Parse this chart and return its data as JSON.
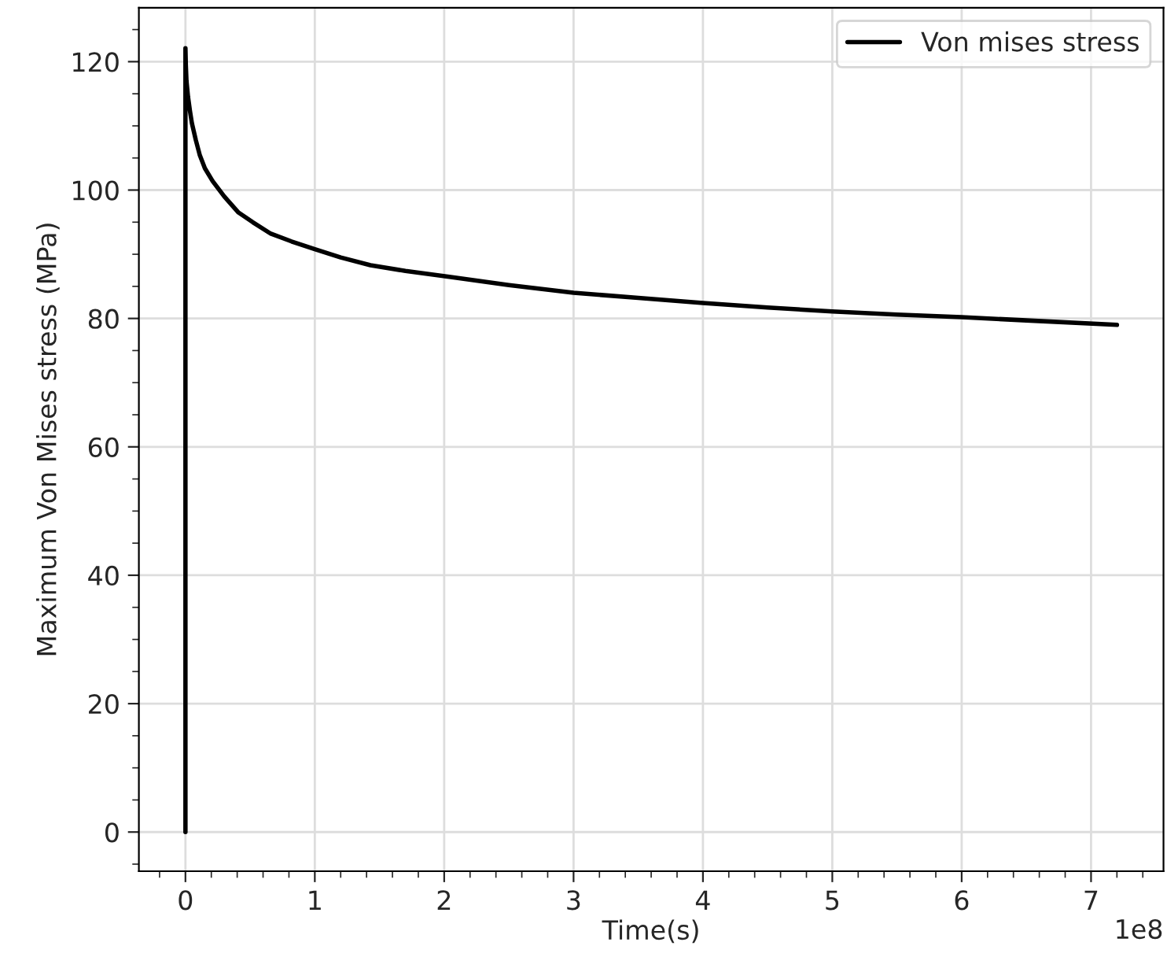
{
  "chart_data": {
    "type": "line",
    "xlabel": "Time(s)",
    "ylabel": "Maximum Von Mises stress (MPa)",
    "series": [
      {
        "name": "Von mises stress",
        "color": "#000000",
        "x": [
          0,
          0,
          0.003,
          0.008,
          0.02,
          0.035,
          0.05,
          0.08,
          0.11,
          0.15,
          0.21,
          0.3,
          0.41,
          0.52,
          0.66,
          0.82,
          1.0,
          1.2,
          1.43,
          1.7,
          2.04,
          2.5,
          3.0,
          3.5,
          4.0,
          4.5,
          5.0,
          5.5,
          6.0,
          6.5,
          7.2
        ],
        "values": [
          0,
          122.1,
          119.5,
          117.0,
          114.5,
          112.3,
          110.4,
          107.8,
          105.5,
          103.4,
          101.4,
          99.0,
          96.5,
          95.0,
          93.2,
          92.0,
          90.8,
          89.5,
          88.3,
          87.4,
          86.5,
          85.2,
          84.0,
          83.2,
          82.4,
          81.7,
          81.1,
          80.6,
          80.2,
          79.7,
          79.0
        ]
      }
    ],
    "xlim": [
      -0.36,
      7.56
    ],
    "xticks": [
      0,
      1,
      2,
      3,
      4,
      5,
      6,
      7
    ],
    "ylim": [
      -6.1,
      128.4
    ],
    "yticks": [
      0,
      20,
      40,
      60,
      80,
      100,
      120
    ],
    "annotations": [
      "1e8"
    ],
    "grid": true,
    "legend": "top right",
    "marker": "none",
    "line_style": "solid"
  }
}
